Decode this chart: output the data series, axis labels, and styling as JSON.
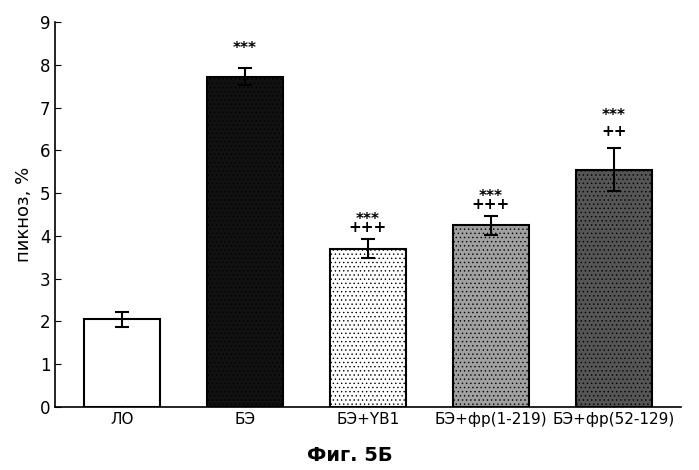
{
  "categories": [
    "ЛО",
    "БЭ",
    "БЭ+YB1",
    "БЭ+фр(1-219)",
    "БЭ+фр(52-129)"
  ],
  "values": [
    2.05,
    7.72,
    3.7,
    4.25,
    5.55
  ],
  "errors": [
    0.18,
    0.2,
    0.22,
    0.22,
    0.5
  ],
  "ylabel": "пикноз, %",
  "ylim": [
    0,
    9
  ],
  "yticks": [
    0,
    1,
    2,
    3,
    4,
    5,
    6,
    7,
    8,
    9
  ],
  "figure_label": "Фиг. 5Б",
  "background_color": "#ffffff",
  "bar_width": 0.62,
  "annotation_fontsize": 11,
  "ylabel_fontsize": 13,
  "tick_fontsize": 12,
  "label_fontsize": 14,
  "annotation_lines": [
    [],
    [
      "***"
    ],
    [
      "***",
      "+++"
    ],
    [
      "***",
      "+++"
    ],
    [
      "***",
      "++"
    ]
  ],
  "annot_offsets": [
    0,
    0.28,
    0.28,
    0.28,
    0.58
  ]
}
